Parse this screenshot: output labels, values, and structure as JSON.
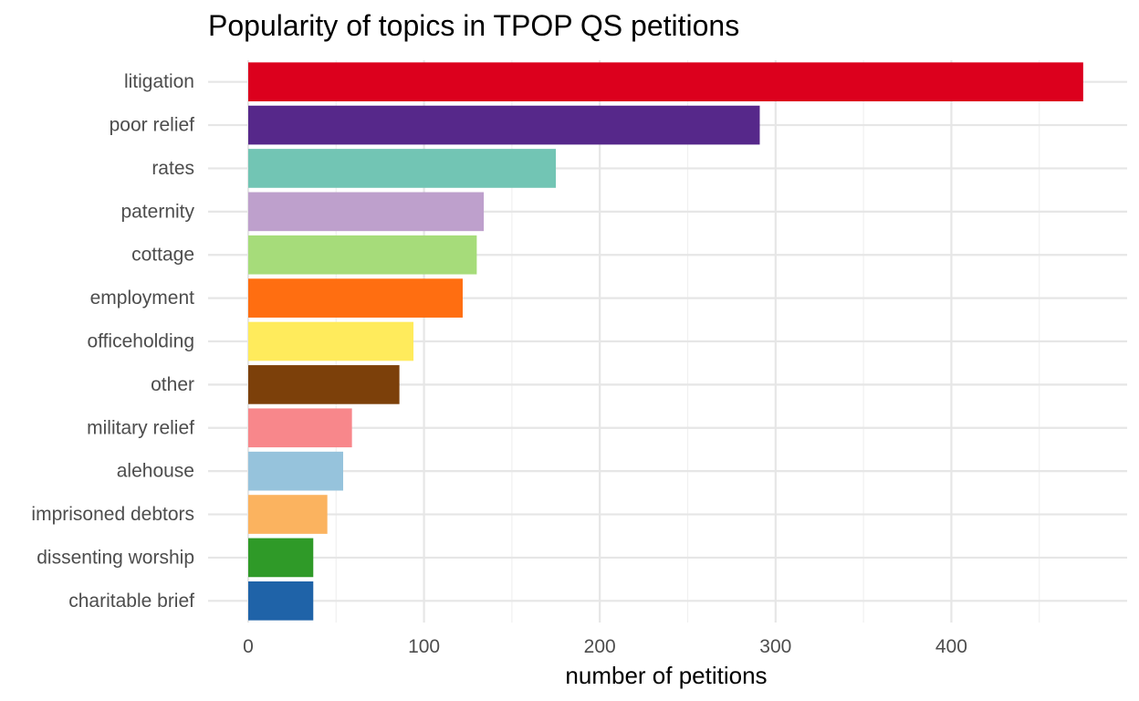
{
  "chart_data": {
    "type": "bar",
    "orientation": "horizontal",
    "title": "Popularity of topics in TPOP QS petitions",
    "xlabel": "number of petitions",
    "ylabel": "",
    "xlim": [
      0,
      500
    ],
    "xticks": [
      0,
      100,
      200,
      300,
      400
    ],
    "grid": true,
    "legend": "none",
    "categories": [
      "litigation",
      "poor relief",
      "rates",
      "paternity",
      "cottage",
      "employment",
      "officeholding",
      "other",
      "military relief",
      "alehouse",
      "imprisoned debtors",
      "dissenting worship",
      "charitable brief"
    ],
    "values": [
      475,
      291,
      175,
      134,
      130,
      122,
      94,
      86,
      59,
      54,
      45,
      37,
      37
    ],
    "colors": [
      "#DC001D",
      "#56288A",
      "#72C5B4",
      "#BEA0CC",
      "#A6DC7A",
      "#FF6E11",
      "#FFEB5C",
      "#7C400A",
      "#F8878B",
      "#96C3DC",
      "#FBB35F",
      "#2F9A28",
      "#1F63A8"
    ]
  }
}
